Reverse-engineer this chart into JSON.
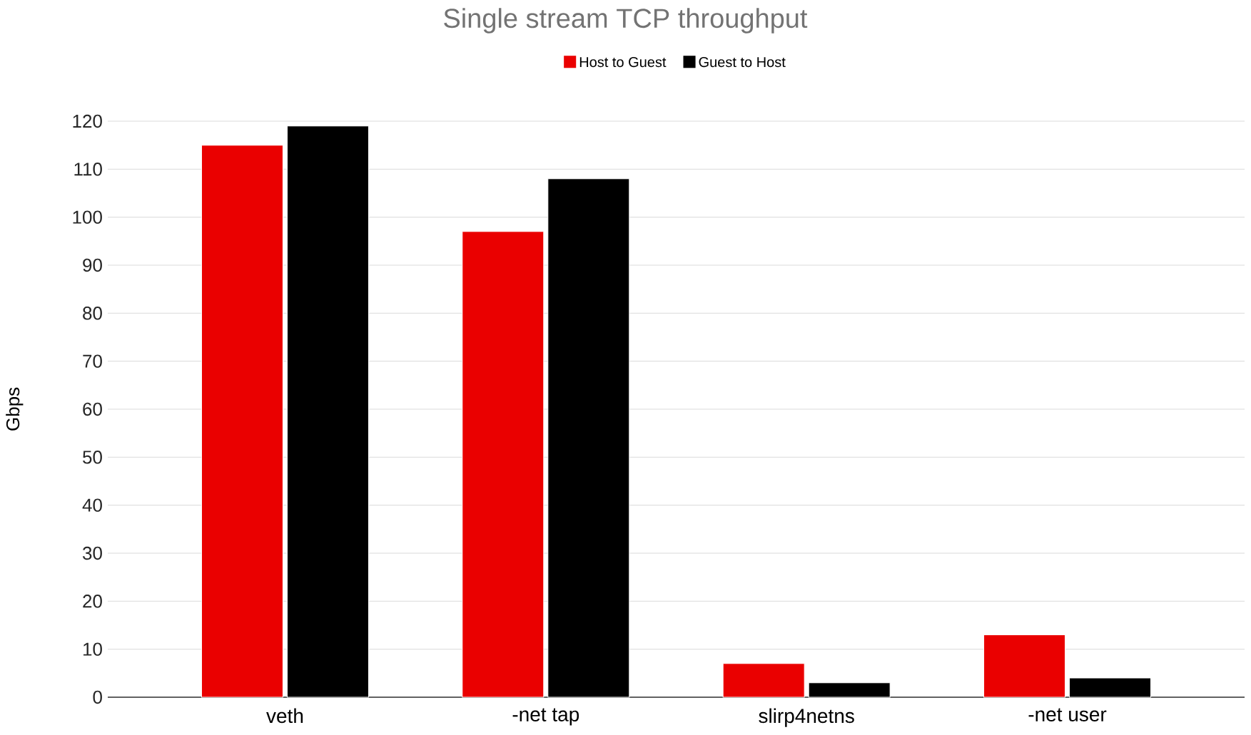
{
  "chart_data": {
    "type": "bar",
    "title": "Single stream TCP throughput",
    "ylabel": "Gbps",
    "categories": [
      "veth",
      "-net tap",
      "slirp4netns",
      "-net user"
    ],
    "series": [
      {
        "name": "Host to Guest",
        "color": "#ea0000",
        "values": [
          115,
          97,
          7,
          13
        ]
      },
      {
        "name": "Guest to Host",
        "color": "#000000",
        "values": [
          119,
          108,
          3,
          4
        ]
      }
    ],
    "ylim": [
      0,
      120
    ],
    "yticks": [
      0,
      10,
      20,
      30,
      40,
      50,
      60,
      70,
      80,
      90,
      100,
      110,
      120
    ],
    "grid": "y",
    "legend": "top"
  }
}
